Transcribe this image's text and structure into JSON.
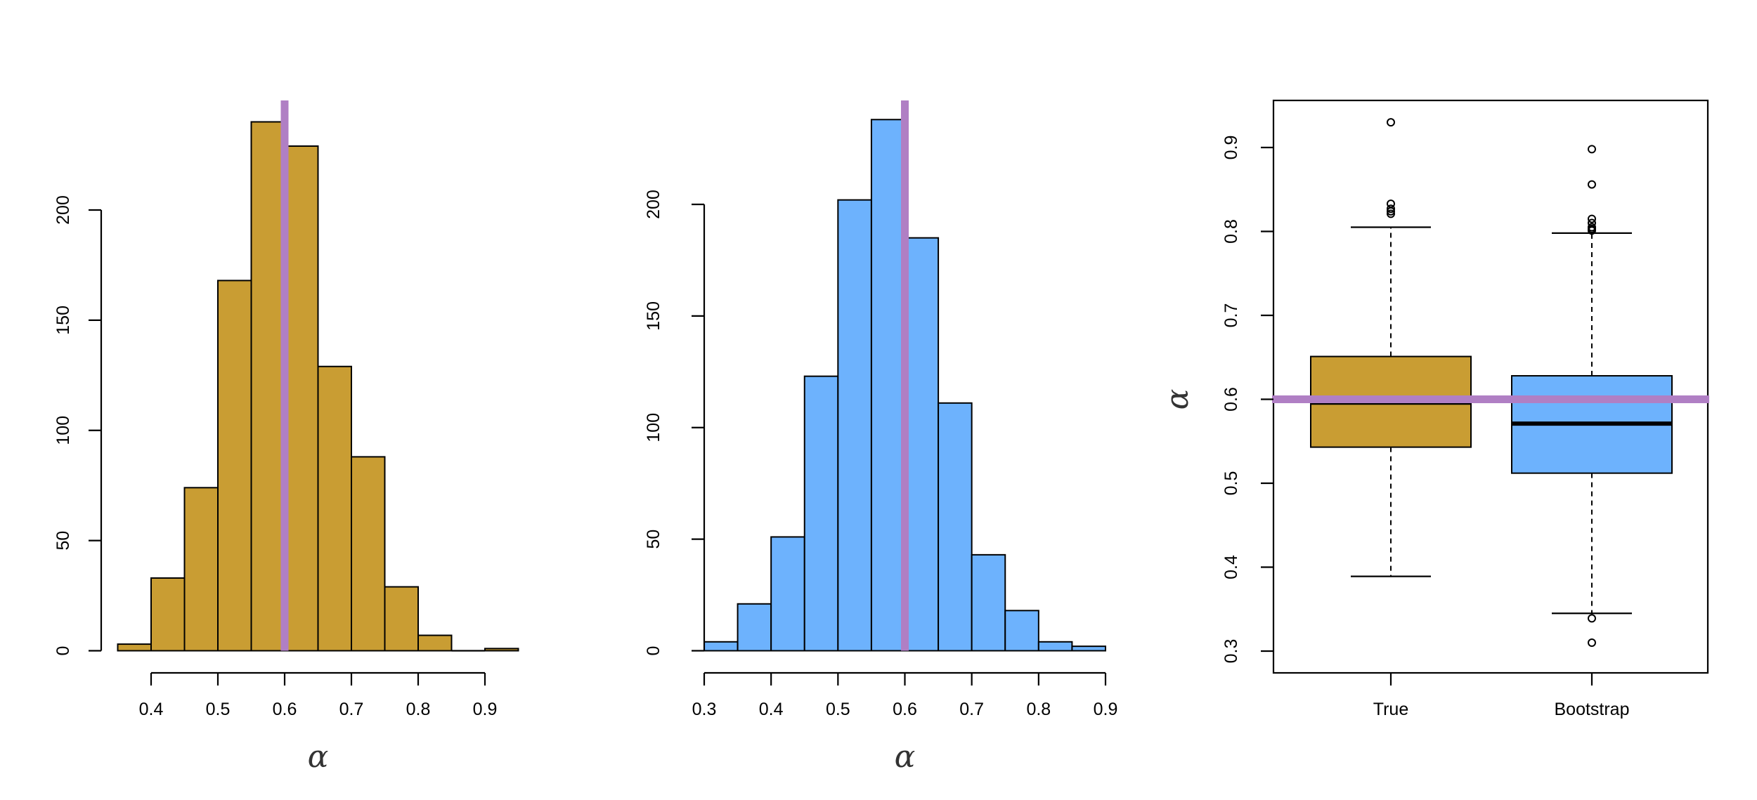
{
  "colors": {
    "true_fill": "#C99D33",
    "bootstrap_fill": "#6DB2FD",
    "reference_line": "#B07FC4"
  },
  "chart_data": [
    {
      "type": "bar",
      "subtype": "histogram",
      "xlabel": "α",
      "ylabel": "",
      "bin_edges": [
        0.35,
        0.4,
        0.45,
        0.5,
        0.55,
        0.6,
        0.65,
        0.7,
        0.75,
        0.8,
        0.85,
        0.9,
        0.95
      ],
      "counts": [
        3,
        33,
        74,
        168,
        240,
        229,
        129,
        88,
        29,
        7,
        0,
        1
      ],
      "xticks": [
        "0.4",
        "0.5",
        "0.6",
        "0.7",
        "0.8",
        "0.9"
      ],
      "yticks": [
        "0",
        "50",
        "100",
        "150",
        "200"
      ],
      "ylim": [
        0,
        250
      ],
      "reference_line_x": 0.6,
      "fill_color": "#C99D33"
    },
    {
      "type": "bar",
      "subtype": "histogram",
      "xlabel": "α",
      "ylabel": "",
      "bin_edges": [
        0.3,
        0.35,
        0.4,
        0.45,
        0.5,
        0.55,
        0.6,
        0.65,
        0.7,
        0.75,
        0.8,
        0.85,
        0.9
      ],
      "counts": [
        4,
        21,
        51,
        123,
        202,
        238,
        185,
        111,
        43,
        18,
        4,
        2
      ],
      "xticks": [
        "0.3",
        "0.4",
        "0.5",
        "0.6",
        "0.7",
        "0.8",
        "0.9"
      ],
      "yticks": [
        "0",
        "50",
        "100",
        "150",
        "200"
      ],
      "ylim": [
        0,
        250
      ],
      "reference_line_x": 0.6,
      "fill_color": "#6DB2FD"
    },
    {
      "type": "boxplot",
      "ylabel": "α",
      "categories": [
        "True",
        "Bootstrap"
      ],
      "yticks": [
        "0.3",
        "0.4",
        "0.5",
        "0.6",
        "0.7",
        "0.8",
        "0.9"
      ],
      "ylim": [
        0.285,
        0.955
      ],
      "reference_line_y": 0.6,
      "boxes": [
        {
          "name": "True",
          "whisker_low": 0.389,
          "q1": 0.543,
          "median": 0.596,
          "q3": 0.651,
          "whisker_high": 0.805,
          "outliers": [
            0.821,
            0.824,
            0.827,
            0.833,
            0.93
          ],
          "fill_color": "#C99D33"
        },
        {
          "name": "Bootstrap",
          "whisker_low": 0.345,
          "q1": 0.512,
          "median": 0.571,
          "q3": 0.628,
          "whisker_high": 0.798,
          "outliers": [
            0.31,
            0.339,
            0.801,
            0.803,
            0.805,
            0.81,
            0.815,
            0.856,
            0.898
          ],
          "fill_color": "#6DB2FD"
        }
      ]
    }
  ]
}
